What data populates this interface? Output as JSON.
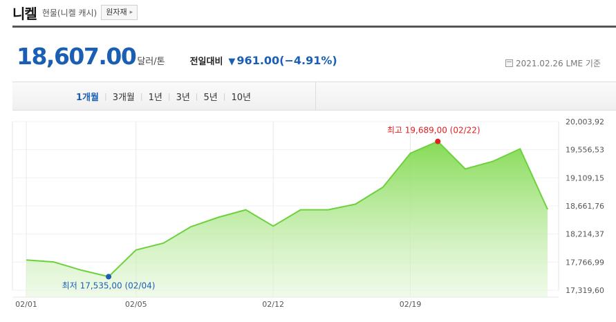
{
  "header": {
    "title": "니켈",
    "subtitle": "현물(니켈 캐시)",
    "material_button": "원자재"
  },
  "quote": {
    "price": "18,607.00",
    "unit": "달러/톤",
    "change_label": "전일대비",
    "change_arrow": "▼",
    "change_value": "961.00",
    "change_pct": "(−4.91%)",
    "as_of": "2021.02.26 LME 기준"
  },
  "period_tabs": [
    {
      "label": "1개월",
      "active": true
    },
    {
      "label": "3개월",
      "active": false
    },
    {
      "label": "1년",
      "active": false
    },
    {
      "label": "3년",
      "active": false
    },
    {
      "label": "5년",
      "active": false
    },
    {
      "label": "10년",
      "active": false
    }
  ],
  "colors": {
    "accent": "#1a5fb4",
    "line": "#6cd13c",
    "high": "#e02020",
    "low": "#1a5fb4"
  },
  "chart_data": {
    "type": "area",
    "x": [
      "02/01",
      "02/02",
      "02/03",
      "02/04",
      "02/05",
      "02/08",
      "02/09",
      "02/10",
      "02/11",
      "02/12",
      "02/15",
      "02/16",
      "02/17",
      "02/18",
      "02/19",
      "02/22",
      "02/23",
      "02/24",
      "02/25",
      "02/26"
    ],
    "values": [
      17800,
      17770,
      17640,
      17535,
      17960,
      18070,
      18330,
      18480,
      18600,
      18340,
      18600,
      18600,
      18690,
      18960,
      19500,
      19689,
      19250,
      19370,
      19570,
      18607
    ],
    "x_tick_labels": [
      "02/01",
      "02/05",
      "02/12",
      "02/19"
    ],
    "y_tick_labels": [
      "20,003,92",
      "19,556,53",
      "19,109,15",
      "18,661,76",
      "18,214,37",
      "17,766,99",
      "17,319,60"
    ],
    "ylim": [
      17319.6,
      20003.92
    ],
    "grid": true,
    "annotations": {
      "high": {
        "label": "최고 19,689,00 (02/22)",
        "value": 19689,
        "x": "02/22"
      },
      "low": {
        "label": "최저 17,535,00 (02/04)",
        "value": 17535,
        "x": "02/04"
      }
    }
  }
}
